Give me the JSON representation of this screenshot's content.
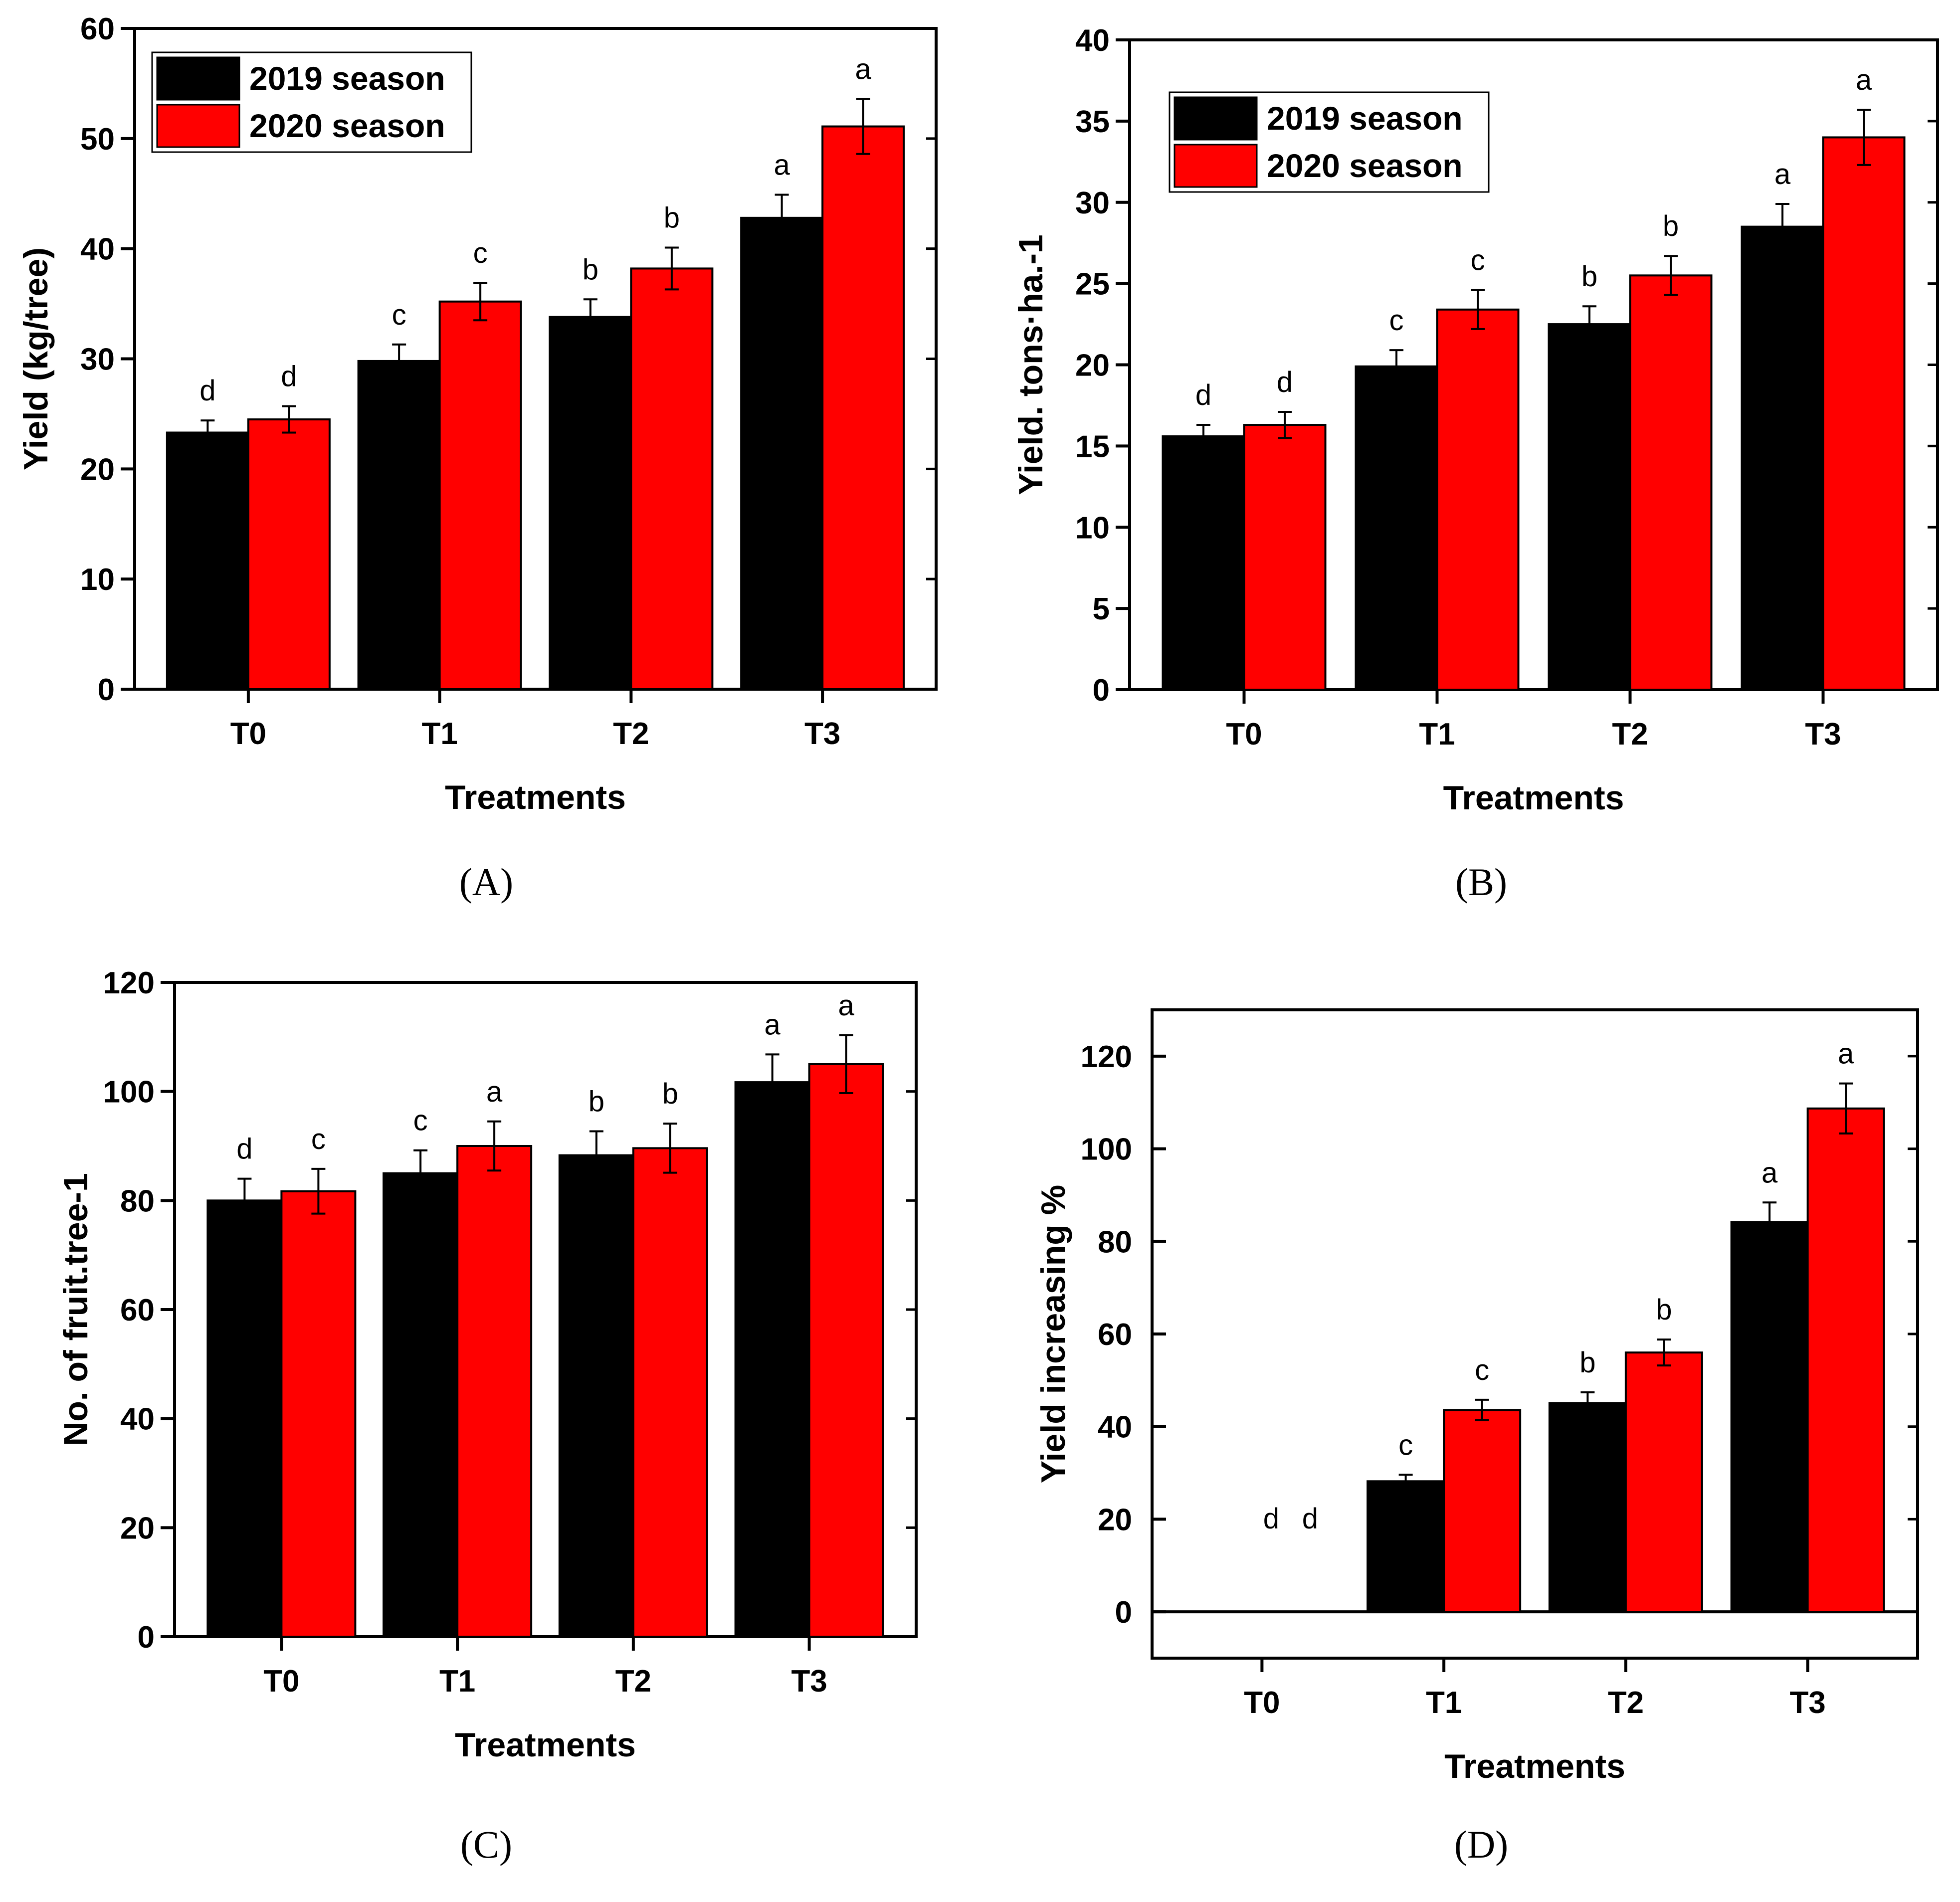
{
  "chart_data": [
    {
      "type": "bar",
      "panel_label": "(A)",
      "categories": [
        "T0",
        "T1",
        "T2",
        "T3"
      ],
      "xlabel": "Treatments",
      "ylabel": "Yield (kg/tree)",
      "ylim": [
        0,
        60
      ],
      "yticks": [
        0,
        10,
        20,
        30,
        40,
        50,
        60
      ],
      "legend": "top-left",
      "series": [
        {
          "name": "2019 season",
          "color": "#000000",
          "values": [
            23.3,
            29.8,
            33.8,
            42.8
          ],
          "errors": [
            1.1,
            1.5,
            1.6,
            2.1
          ],
          "letters": [
            "d",
            "c",
            "b",
            "a"
          ]
        },
        {
          "name": "2020 season",
          "color": "#ff0000",
          "values": [
            24.5,
            35.2,
            38.2,
            51.1
          ],
          "errors": [
            1.2,
            1.7,
            1.9,
            2.5
          ],
          "letters": [
            "d",
            "c",
            "b",
            "a"
          ]
        }
      ]
    },
    {
      "type": "bar",
      "panel_label": "(B)",
      "categories": [
        "T0",
        "T1",
        "T2",
        "T3"
      ],
      "xlabel": "Treatments",
      "ylabel": "Yield. tons·ha.-1",
      "ylim": [
        0,
        40
      ],
      "yticks": [
        0,
        5,
        10,
        15,
        20,
        25,
        30,
        35,
        40
      ],
      "legend": "top-left",
      "series": [
        {
          "name": "2019 season",
          "color": "#000000",
          "values": [
            15.6,
            19.9,
            22.5,
            28.5
          ],
          "errors": [
            0.7,
            1.0,
            1.1,
            1.4
          ],
          "letters": [
            "d",
            "c",
            "b",
            "a"
          ]
        },
        {
          "name": "2020 season",
          "color": "#ff0000",
          "values": [
            16.3,
            23.4,
            25.5,
            34.0
          ],
          "errors": [
            0.8,
            1.2,
            1.2,
            1.7
          ],
          "letters": [
            "d",
            "c",
            "b",
            "a"
          ]
        }
      ]
    },
    {
      "type": "bar",
      "panel_label": "(C)",
      "categories": [
        "T0",
        "T1",
        "T2",
        "T3"
      ],
      "xlabel": "Treatments",
      "ylabel": "No. of fruit.tree-1",
      "ylim": [
        0,
        120
      ],
      "yticks": [
        0,
        20,
        40,
        60,
        80,
        100,
        120
      ],
      "legend": "none",
      "series": [
        {
          "name": "2019 season",
          "color": "#000000",
          "values": [
            80.0,
            85.0,
            88.3,
            101.7
          ],
          "errors": [
            4.0,
            4.2,
            4.4,
            5.1
          ],
          "letters": [
            "d",
            "c",
            "b",
            "a"
          ]
        },
        {
          "name": "2020 season",
          "color": "#ff0000",
          "values": [
            81.7,
            90.0,
            89.6,
            105.0
          ],
          "errors": [
            4.1,
            4.5,
            4.5,
            5.3
          ],
          "letters": [
            "c",
            "a",
            "b",
            "a"
          ]
        }
      ]
    },
    {
      "type": "bar",
      "panel_label": "(D)",
      "categories": [
        "T0",
        "T1",
        "T2",
        "T3"
      ],
      "xlabel": "Treatments",
      "ylabel": "Yield increasing %",
      "ylim": [
        -10,
        130
      ],
      "yticks": [
        0,
        20,
        40,
        60,
        80,
        100,
        120
      ],
      "legend": "none",
      "series": [
        {
          "name": "2019 season",
          "color": "#000000",
          "values": [
            0,
            28.2,
            45.1,
            84.2
          ],
          "errors": [
            0,
            1.4,
            2.3,
            4.2
          ],
          "letters": [
            "d",
            "c",
            "b",
            "a"
          ]
        },
        {
          "name": "2020 season",
          "color": "#ff0000",
          "values": [
            0,
            43.6,
            56.0,
            108.7
          ],
          "errors": [
            0,
            2.2,
            2.8,
            5.4
          ],
          "letters": [
            "d",
            "c",
            "b",
            "a"
          ]
        }
      ]
    }
  ]
}
